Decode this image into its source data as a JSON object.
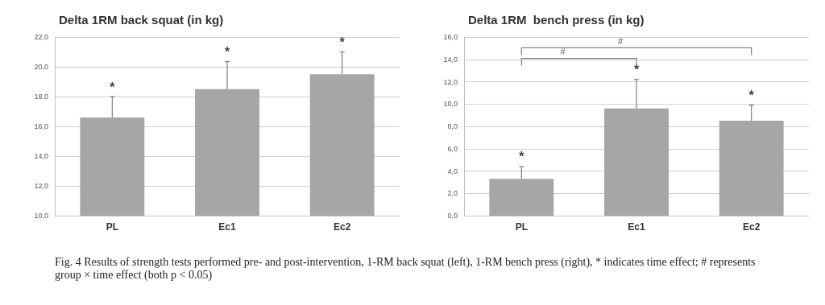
{
  "chart_data": [
    {
      "type": "bar",
      "title": "Delta 1RM back squat (in kg)",
      "categories": [
        "PL",
        "Ec1",
        "Ec2"
      ],
      "values": [
        16.6,
        18.5,
        19.5
      ],
      "color": "#a6a6a6",
      "errors": [
        [
          16.6,
          18.0
        ],
        [
          18.5,
          20.35
        ],
        [
          19.5,
          21.0
        ]
      ],
      "ylim": [
        10,
        22
      ],
      "yticks": [
        {
          "value": 10,
          "label": "10,0"
        },
        {
          "value": 12,
          "label": "12,0"
        },
        {
          "value": 14,
          "label": "14,0"
        },
        {
          "value": 16,
          "label": "16,0"
        },
        {
          "value": 18,
          "label": "18,0"
        },
        {
          "value": 20,
          "label": "20,0"
        },
        {
          "value": 22,
          "label": "22,0"
        }
      ],
      "grid": "y",
      "annotations": [
        "*",
        "*",
        "*"
      ]
    },
    {
      "type": "bar",
      "title": "Delta 1RM  bench press (in kg)",
      "categories": [
        "PL",
        "Ec1",
        "Ec2"
      ],
      "values": [
        3.3,
        9.6,
        8.5
      ],
      "color": "#a6a6a6",
      "errors": [
        [
          3.3,
          4.4
        ],
        [
          9.6,
          12.2
        ],
        [
          8.5,
          9.9
        ]
      ],
      "ylim": [
        0,
        16
      ],
      "yticks": [
        {
          "value": 0,
          "label": "0,0"
        },
        {
          "value": 2,
          "label": "2,0"
        },
        {
          "value": 4,
          "label": "4,0"
        },
        {
          "value": 6,
          "label": "6,0"
        },
        {
          "value": 8,
          "label": "8,0"
        },
        {
          "value": 10,
          "label": "10,0"
        },
        {
          "value": 12,
          "label": "12,0"
        },
        {
          "value": 14,
          "label": "14,0"
        },
        {
          "value": 16,
          "label": "16,0"
        }
      ],
      "grid": "y",
      "annotations": [
        "*",
        "*",
        "*",
        "#",
        "#",
        "Fig. 4 Results of strength tests performed pre- and post-intervention, 1-RM back squat (left), 1-RM bench press (right), * indicates time effect; # represents group × time effect (both p < 0.05)"
      ]
    }
  ]
}
